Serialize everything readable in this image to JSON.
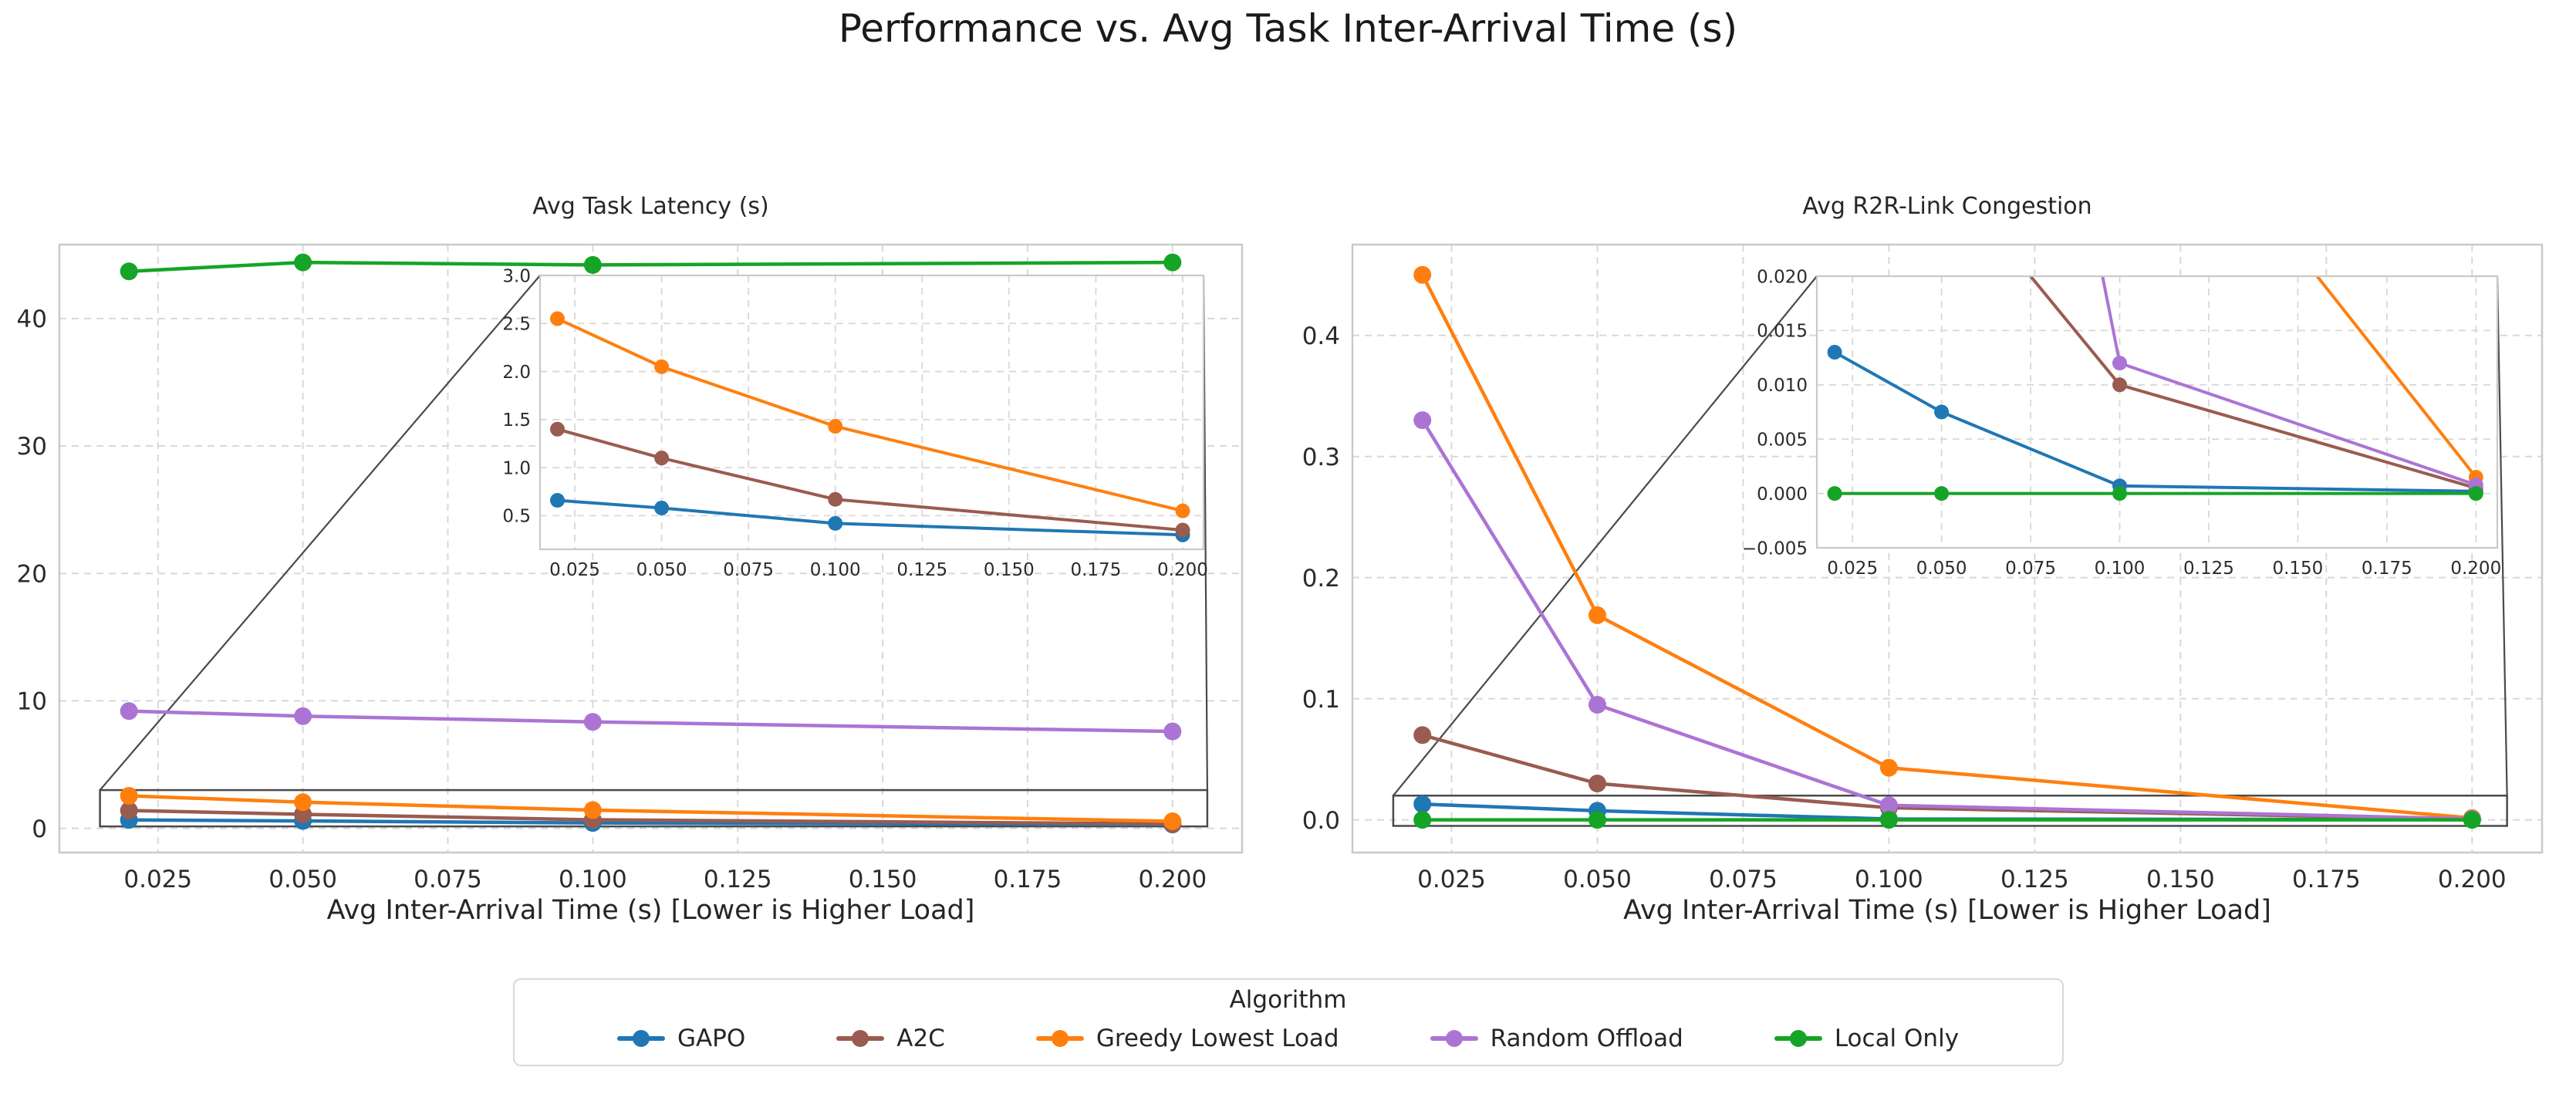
{
  "figure_title": "Performance vs. Avg Task Inter-Arrival Time (s)",
  "legend": {
    "title": "Algorithm",
    "entries": [
      {
        "label": "GAPO",
        "color": "#1f77b4"
      },
      {
        "label": "A2C",
        "color": "#9a5b50"
      },
      {
        "label": "Greedy Lowest Load",
        "color": "#ff7f0e"
      },
      {
        "label": "Random Offload",
        "color": "#ab74d4"
      },
      {
        "label": "Local Only",
        "color": "#16a426"
      }
    ]
  },
  "styles": {
    "grid_color": "#d8d8d8",
    "frame_color": "#c9c9c9",
    "zoom_box_color": "#4a4a4a",
    "tick_color": "#2b2b2b"
  },
  "chart_data": [
    {
      "type": "line",
      "title": "Avg Task Latency (s)",
      "xlabel": "Avg Inter-Arrival Time (s) [Lower is Higher Load]",
      "x": [
        0.02,
        0.05,
        0.1,
        0.2
      ],
      "xlim": [
        0.008,
        0.212
      ],
      "ylim": [
        -1.9,
        45.8
      ],
      "grid": true,
      "xticks": {
        "values": [
          0.025,
          0.05,
          0.075,
          0.1,
          0.125,
          0.15,
          0.175,
          0.2
        ],
        "labels": [
          "0.025",
          "0.050",
          "0.075",
          "0.100",
          "0.125",
          "0.150",
          "0.175",
          "0.200"
        ]
      },
      "yticks": {
        "values": [
          0,
          10,
          20,
          30,
          40
        ],
        "labels": [
          "0",
          "10",
          "20",
          "30",
          "40"
        ]
      },
      "series": [
        {
          "name": "GAPO",
          "color": "#1f77b4",
          "values": [
            0.66,
            0.58,
            0.42,
            0.3
          ]
        },
        {
          "name": "A2C",
          "color": "#9a5b50",
          "values": [
            1.4,
            1.1,
            0.67,
            0.35
          ]
        },
        {
          "name": "Greedy Lowest Load",
          "color": "#ff7f0e",
          "values": [
            2.55,
            2.05,
            1.43,
            0.55
          ]
        },
        {
          "name": "Random Offload",
          "color": "#ab74d4",
          "values": [
            9.2,
            8.8,
            8.35,
            7.6
          ]
        },
        {
          "name": "Local Only",
          "color": "#16a426",
          "values": [
            43.7,
            44.4,
            44.2,
            44.4
          ]
        }
      ],
      "inset": {
        "xlim": [
          0.015,
          0.206
        ],
        "ylim": [
          0.15,
          3.0
        ],
        "xticks": {
          "values": [
            0.025,
            0.05,
            0.075,
            0.1,
            0.125,
            0.15,
            0.175,
            0.2
          ],
          "labels": [
            "0.025",
            "0.050",
            "0.075",
            "0.100",
            "0.125",
            "0.150",
            "0.175",
            "0.200"
          ]
        },
        "yticks": {
          "values": [
            0.5,
            1.0,
            1.5,
            2.0,
            2.5,
            3.0
          ],
          "labels": [
            "0.5",
            "1.0",
            "1.5",
            "2.0",
            "2.5",
            "3.0"
          ]
        }
      }
    },
    {
      "type": "line",
      "title": "Avg R2R-Link Congestion",
      "xlabel": "Avg Inter-Arrival Time (s) [Lower is Higher Load]",
      "x": [
        0.02,
        0.05,
        0.1,
        0.2
      ],
      "xlim": [
        0.008,
        0.212
      ],
      "ylim": [
        -0.027,
        0.475
      ],
      "grid": true,
      "xticks": {
        "values": [
          0.025,
          0.05,
          0.075,
          0.1,
          0.125,
          0.15,
          0.175,
          0.2
        ],
        "labels": [
          "0.025",
          "0.050",
          "0.075",
          "0.100",
          "0.125",
          "0.150",
          "0.175",
          "0.200"
        ]
      },
      "yticks": {
        "values": [
          0.0,
          0.1,
          0.2,
          0.3,
          0.4
        ],
        "labels": [
          "0.0",
          "0.1",
          "0.2",
          "0.3",
          "0.4"
        ]
      },
      "series": [
        {
          "name": "GAPO",
          "color": "#1f77b4",
          "values": [
            0.013,
            0.0075,
            0.0007,
            0.0002
          ]
        },
        {
          "name": "A2C",
          "color": "#9a5b50",
          "values": [
            0.07,
            0.03,
            0.01,
            0.0005
          ]
        },
        {
          "name": "Greedy Lowest Load",
          "color": "#ff7f0e",
          "values": [
            0.45,
            0.169,
            0.043,
            0.0015
          ]
        },
        {
          "name": "Random Offload",
          "color": "#ab74d4",
          "values": [
            0.33,
            0.095,
            0.012,
            0.0008
          ]
        },
        {
          "name": "Local Only",
          "color": "#16a426",
          "values": [
            0.0,
            0.0,
            0.0,
            0.0
          ]
        }
      ],
      "inset": {
        "xlim": [
          0.015,
          0.206
        ],
        "ylim": [
          -0.005,
          0.02
        ],
        "xticks": {
          "values": [
            0.025,
            0.05,
            0.075,
            0.1,
            0.125,
            0.15,
            0.175,
            0.2
          ],
          "labels": [
            "0.025",
            "0.050",
            "0.075",
            "0.100",
            "0.125",
            "0.150",
            "0.175",
            "0.200"
          ]
        },
        "yticks": {
          "values": [
            -0.005,
            0.0,
            0.005,
            0.01,
            0.015,
            0.02
          ],
          "labels": [
            "−0.005",
            "0.000",
            "0.005",
            "0.010",
            "0.015",
            "0.020"
          ]
        }
      }
    }
  ]
}
